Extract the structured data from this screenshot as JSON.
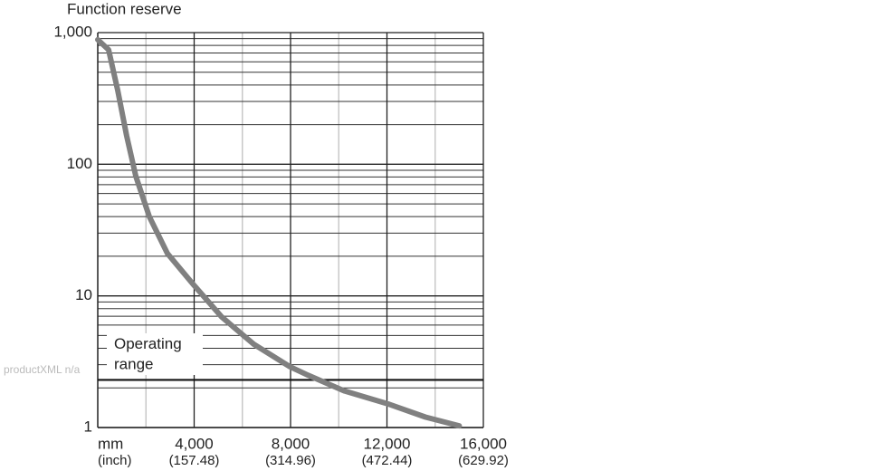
{
  "watermark": "productXML n/a",
  "chart_data": {
    "type": "line",
    "y_label": "Function reserve",
    "x_unit_label": "mm",
    "x_unit_sublabel": "(inch)",
    "annotation": "Operating range",
    "annotation_line2": "range",
    "log_y": true,
    "grid": true,
    "color": "#808080",
    "xlim": [
      0,
      16000
    ],
    "xticks": [
      {
        "value": 4000,
        "label": "4,000",
        "sublabel": "(157.48)"
      },
      {
        "value": 8000,
        "label": "8,000",
        "sublabel": "(314.96)"
      },
      {
        "value": 12000,
        "label": "12,000",
        "sublabel": "(472.44)"
      },
      {
        "value": 16000,
        "label": "16,000",
        "sublabel": "(629.92)"
      }
    ],
    "minor_xticks": [
      2000,
      6000,
      10000,
      14000
    ],
    "ylim": [
      1,
      1000
    ],
    "yticks": [
      1,
      10,
      100,
      {
        "value": 1000,
        "label": "1,000"
      }
    ],
    "minor_yticks": [
      2,
      3,
      4,
      5,
      6,
      7,
      8,
      9,
      20,
      30,
      40,
      50,
      60,
      70,
      80,
      90,
      200,
      300,
      400,
      500,
      600,
      700,
      800,
      900
    ],
    "threshold": 2.3,
    "x": [
      0,
      450,
      830,
      1200,
      1580,
      2140,
      2890,
      4000,
      5150,
      6470,
      7970,
      8720,
      10220,
      12100,
      13600,
      15000
    ],
    "values": [
      883,
      741,
      363,
      164,
      81,
      40,
      21,
      12,
      6.9,
      4.3,
      2.9,
      2.5,
      1.9,
      1.5,
      1.2,
      1.03
    ]
  }
}
